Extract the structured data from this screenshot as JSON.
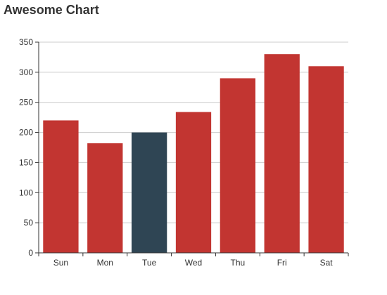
{
  "chart_data": {
    "type": "bar",
    "title": "Awesome Chart",
    "categories": [
      "Sun",
      "Mon",
      "Tue",
      "Wed",
      "Thu",
      "Fri",
      "Sat"
    ],
    "values": [
      220,
      182,
      200,
      234,
      290,
      330,
      310
    ],
    "highlight_index": 2,
    "ylim": [
      0,
      350
    ],
    "yticks": [
      0,
      50,
      100,
      150,
      200,
      250,
      300,
      350
    ],
    "grid": true,
    "colors": {
      "bar": "#c23531",
      "highlight": "#2f4554",
      "grid": "#cccccc",
      "axis": "#333333"
    }
  }
}
